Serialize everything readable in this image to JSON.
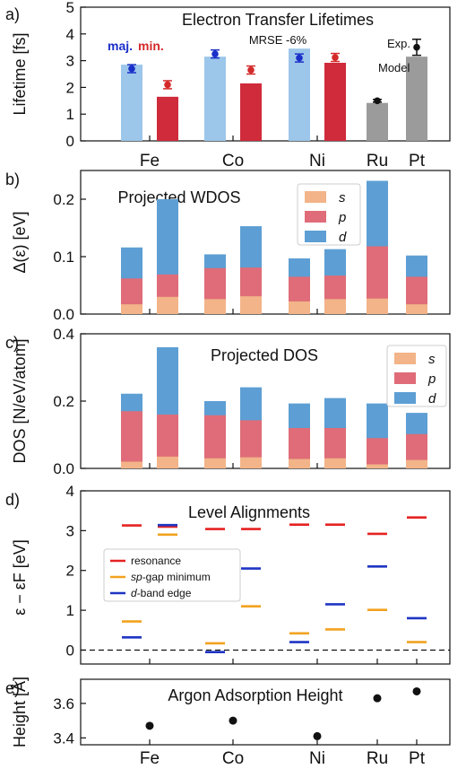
{
  "figure": {
    "elements": [
      "Fe",
      "Co",
      "Ni",
      "Ru",
      "Pt"
    ],
    "spin_labels": {
      "majority": "maj.",
      "minority": "min."
    },
    "colors": {
      "majority": "#9cc6ea",
      "minority": "#cf2b3b",
      "nonmagnetic": "#9b9b9b",
      "s": "#f2b488",
      "p": "#df6c78",
      "d": "#5d9fd4",
      "resonance": "#e52323",
      "sp_gap": "#f2a21e",
      "d_band": "#1f35c4"
    }
  },
  "chart_data": [
    {
      "id": "a",
      "panel_label": "a)",
      "type": "bar",
      "title": "Electron Transfer Lifetimes",
      "ylabel": "Lifetime [fs]",
      "ylim": [
        0,
        5
      ],
      "yticks": [
        "0",
        "1",
        "2",
        "3",
        "4",
        "5"
      ],
      "categories": [
        "Fe",
        "Co",
        "Ni",
        "Ru",
        "Pt"
      ],
      "annotation": "MRSE -6%",
      "series": [
        {
          "name": "maj.",
          "bars": [
            {
              "cat": "Fe",
              "value": 2.85
            },
            {
              "cat": "Co",
              "value": 3.15
            },
            {
              "cat": "Ni",
              "value": 3.45
            }
          ]
        },
        {
          "name": "min.",
          "bars": [
            {
              "cat": "Fe",
              "value": 1.65
            },
            {
              "cat": "Co",
              "value": 2.15
            },
            {
              "cat": "Ni",
              "value": 2.92
            }
          ]
        },
        {
          "name": "",
          "bars": [
            {
              "cat": "Ru",
              "value": 1.42
            },
            {
              "cat": "Pt",
              "value": 3.15
            }
          ]
        }
      ],
      "experiment": [
        {
          "cat": "Fe",
          "spin": "maj.",
          "value": 2.7,
          "err": 0.15
        },
        {
          "cat": "Fe",
          "spin": "min.",
          "value": 2.1,
          "err": 0.15
        },
        {
          "cat": "Co",
          "spin": "maj.",
          "value": 3.25,
          "err": 0.15
        },
        {
          "cat": "Co",
          "spin": "min.",
          "value": 2.65,
          "err": 0.15
        },
        {
          "cat": "Ni",
          "spin": "maj.",
          "value": 3.1,
          "err": 0.15
        },
        {
          "cat": "Ni",
          "spin": "min.",
          "value": 3.12,
          "err": 0.15
        },
        {
          "cat": "Ru",
          "spin": "",
          "value": 1.5,
          "err": 0.05
        },
        {
          "cat": "Pt",
          "spin": "",
          "value": 3.5,
          "err": 0.3
        }
      ],
      "pt_labels": {
        "exp": "Exp.",
        "model": "Model"
      }
    },
    {
      "id": "b",
      "panel_label": "b)",
      "type": "bar",
      "stacked": true,
      "title": "Projected WDOS",
      "ylabel": "Δ(ε) [eV]",
      "ylim": [
        0,
        0.25
      ],
      "yticks": [
        "0.0",
        "0.1",
        "0.2"
      ],
      "legend": [
        "s",
        "p",
        "d"
      ],
      "legend_position": "top-center",
      "bars": [
        {
          "cat": "Fe",
          "spin": "maj.",
          "s": 0.017,
          "p": 0.062,
          "d": 0.116
        },
        {
          "cat": "Fe",
          "spin": "min.",
          "s": 0.03,
          "p": 0.069,
          "d": 0.2
        },
        {
          "cat": "Co",
          "spin": "maj.",
          "s": 0.026,
          "p": 0.08,
          "d": 0.104
        },
        {
          "cat": "Co",
          "spin": "min.",
          "s": 0.031,
          "p": 0.081,
          "d": 0.153
        },
        {
          "cat": "Ni",
          "spin": "maj.",
          "s": 0.022,
          "p": 0.065,
          "d": 0.097
        },
        {
          "cat": "Ni",
          "spin": "min.",
          "s": 0.026,
          "p": 0.067,
          "d": 0.113
        },
        {
          "cat": "Ru",
          "spin": "",
          "s": 0.027,
          "p": 0.118,
          "d": 0.232
        },
        {
          "cat": "Pt",
          "spin": "",
          "s": 0.017,
          "p": 0.065,
          "d": 0.102
        }
      ]
    },
    {
      "id": "c",
      "panel_label": "c)",
      "type": "bar",
      "stacked": true,
      "title": "Projected DOS",
      "ylabel": "DOS [N/eV/atom]",
      "ylim": [
        0,
        0.4
      ],
      "yticks": [
        "0.0",
        "0.2",
        "0.4"
      ],
      "legend": [
        "s",
        "p",
        "d"
      ],
      "legend_position": "right",
      "bars": [
        {
          "cat": "Fe",
          "spin": "maj.",
          "s": 0.02,
          "p": 0.17,
          "d": 0.222
        },
        {
          "cat": "Fe",
          "spin": "min.",
          "s": 0.035,
          "p": 0.16,
          "d": 0.36
        },
        {
          "cat": "Co",
          "spin": "maj.",
          "s": 0.03,
          "p": 0.158,
          "d": 0.2
        },
        {
          "cat": "Co",
          "spin": "min.",
          "s": 0.033,
          "p": 0.143,
          "d": 0.241
        },
        {
          "cat": "Ni",
          "spin": "maj.",
          "s": 0.028,
          "p": 0.12,
          "d": 0.193
        },
        {
          "cat": "Ni",
          "spin": "min.",
          "s": 0.03,
          "p": 0.12,
          "d": 0.209
        },
        {
          "cat": "Ru",
          "spin": "",
          "s": 0.012,
          "p": 0.09,
          "d": 0.193
        },
        {
          "cat": "Pt",
          "spin": "",
          "s": 0.025,
          "p": 0.102,
          "d": 0.165
        }
      ]
    },
    {
      "id": "d",
      "panel_label": "d)",
      "type": "scatter",
      "title": "Level Alignments",
      "ylabel": "ε − εF [eV]",
      "ylim": [
        -0.35,
        4
      ],
      "yticks": [
        "0",
        "1",
        "2",
        "3",
        "4"
      ],
      "legend": {
        "resonance": "resonance",
        "sp_gap_prefix": "sp",
        "sp_gap_suffix": "-gap minimum",
        "d_band_prefix": "d",
        "d_band_suffix": "-band edge"
      },
      "legend_position": "left",
      "levels": [
        {
          "cat": "Fe",
          "spin": "maj.",
          "resonance": 3.13,
          "sp_gap": 0.72,
          "d_band": 0.32
        },
        {
          "cat": "Fe",
          "spin": "min.",
          "resonance": 3.1,
          "sp_gap": 2.9,
          "d_band": 3.14
        },
        {
          "cat": "Co",
          "spin": "maj.",
          "resonance": 3.04,
          "sp_gap": 0.17,
          "d_band": -0.05
        },
        {
          "cat": "Co",
          "spin": "min.",
          "resonance": 3.04,
          "sp_gap": 1.1,
          "d_band": 2.05
        },
        {
          "cat": "Ni",
          "spin": "maj.",
          "resonance": 3.15,
          "sp_gap": 0.42,
          "d_band": 0.2
        },
        {
          "cat": "Ni",
          "spin": "min.",
          "resonance": 3.15,
          "sp_gap": 0.52,
          "d_band": 1.15
        },
        {
          "cat": "Ru",
          "spin": "",
          "resonance": 2.92,
          "sp_gap": 1.01,
          "d_band": 2.1
        },
        {
          "cat": "Pt",
          "spin": "",
          "resonance": 3.33,
          "sp_gap": 0.2,
          "d_band": 0.8
        }
      ]
    },
    {
      "id": "e",
      "panel_label": "e)",
      "type": "scatter",
      "title": "Argon Adsorption Height",
      "ylabel": "Height [Å]",
      "ylim": [
        3.36,
        3.74
      ],
      "yticks": [
        "3.4",
        "3.6"
      ],
      "xticks": [
        "Fe",
        "Co",
        "Ni",
        "Ru",
        "Pt"
      ],
      "points": [
        {
          "cat": "Fe",
          "value": 3.47
        },
        {
          "cat": "Co",
          "value": 3.5
        },
        {
          "cat": "Ni",
          "value": 3.41
        },
        {
          "cat": "Ru",
          "value": 3.63
        },
        {
          "cat": "Pt",
          "value": 3.67
        }
      ]
    }
  ]
}
